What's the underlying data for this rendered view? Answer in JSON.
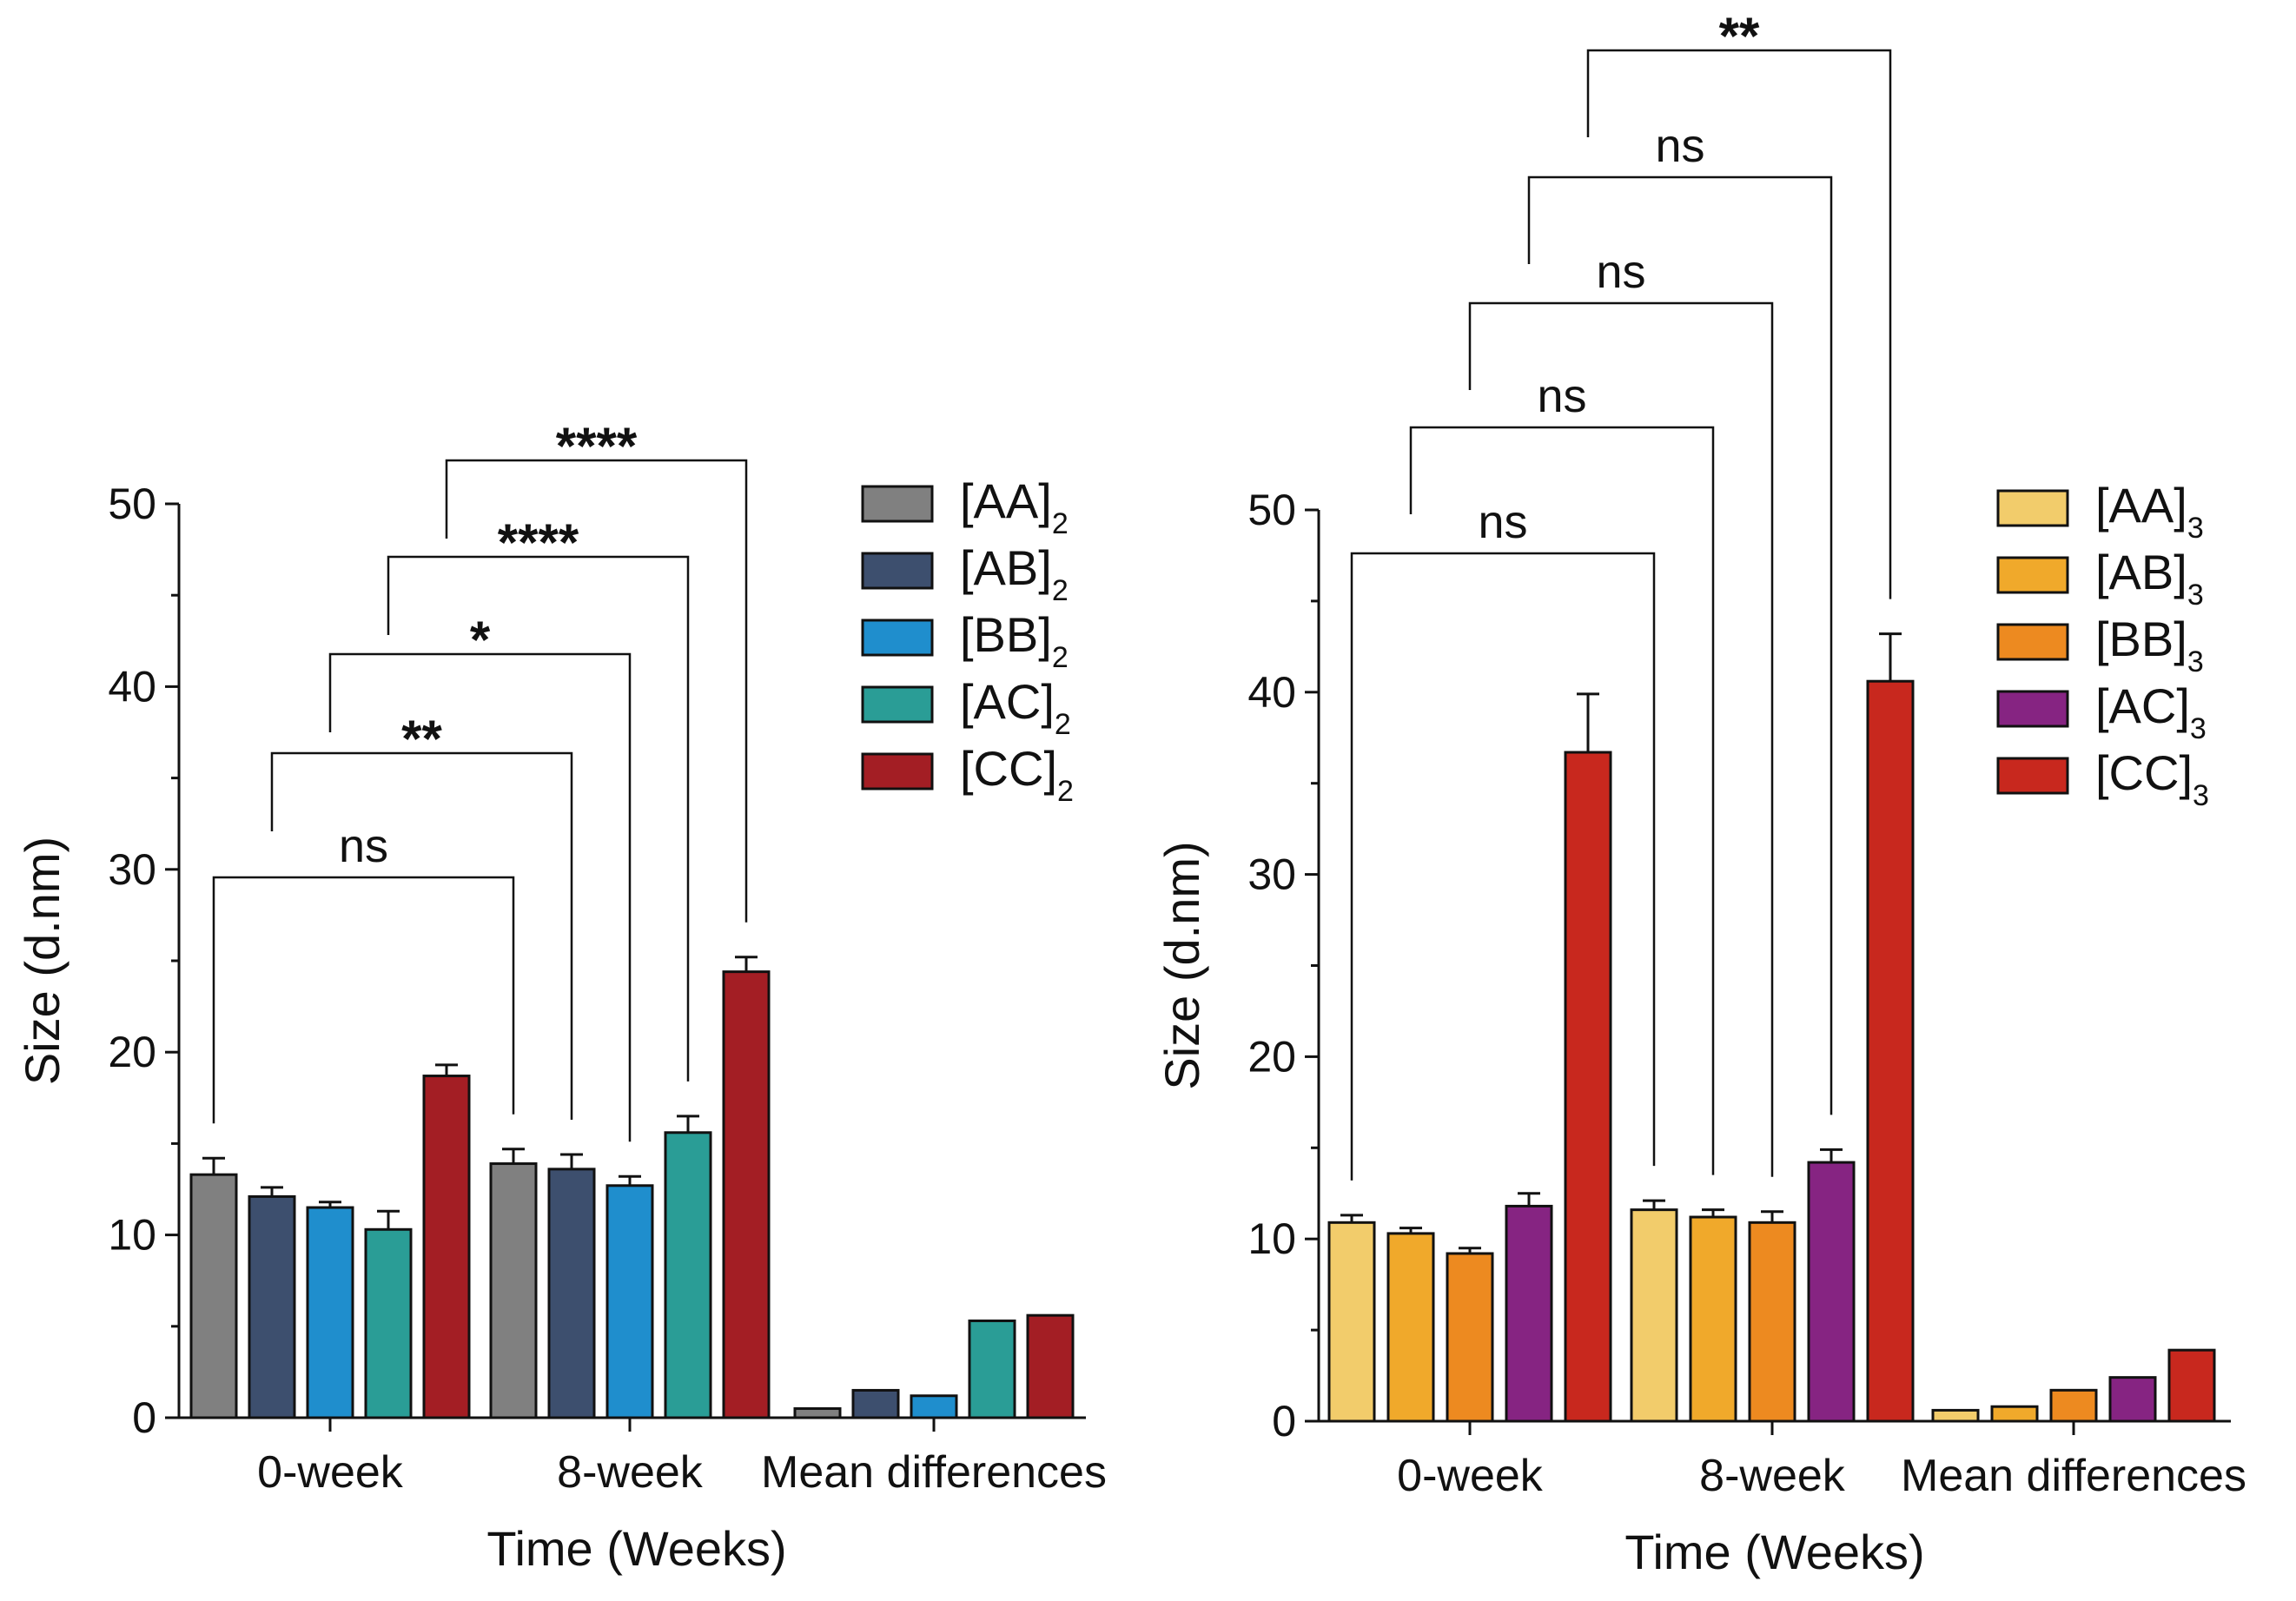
{
  "chart_data": [
    {
      "type": "bar",
      "id": "left",
      "title": "",
      "xlabel": "Time (Weeks)",
      "ylabel": "Size (d.nm)",
      "ylim": [
        0,
        50
      ],
      "yticks": [
        "0",
        "10",
        "20",
        "30",
        "40",
        "50"
      ],
      "groups": [
        "0-week",
        "8-week",
        "Mean differences"
      ],
      "legend_position": "top-right",
      "series": [
        {
          "name": "[AA]",
          "sub": "2",
          "color": "#808080",
          "values": [
            13.3,
            13.9,
            0.5
          ],
          "errors": [
            0.9,
            0.8,
            null
          ]
        },
        {
          "name": "[AB]",
          "sub": "2",
          "color": "#3d4f6e",
          "values": [
            12.1,
            13.6,
            1.5
          ],
          "errors": [
            0.5,
            0.8,
            null
          ]
        },
        {
          "name": "[BB]",
          "sub": "2",
          "color": "#1f8ecd",
          "values": [
            11.5,
            12.7,
            1.2
          ],
          "errors": [
            0.3,
            0.5,
            null
          ]
        },
        {
          "name": "[AC]",
          "sub": "2",
          "color": "#2a9d96",
          "values": [
            10.3,
            15.6,
            5.3
          ],
          "errors": [
            1.0,
            0.9,
            null
          ]
        },
        {
          "name": "[CC]",
          "sub": "2",
          "color": "#a31e24",
          "values": [
            18.7,
            24.4,
            5.6
          ],
          "errors": [
            0.6,
            0.8,
            null
          ]
        }
      ],
      "significance": [
        {
          "series": 0,
          "label": "ns"
        },
        {
          "series": 1,
          "label": "**"
        },
        {
          "series": 2,
          "label": "*"
        },
        {
          "series": 3,
          "label": "****"
        },
        {
          "series": 4,
          "label": "****"
        }
      ]
    },
    {
      "type": "bar",
      "id": "right",
      "title": "",
      "xlabel": "Time (Weeks)",
      "ylabel": "Size (d.nm)",
      "ylim": [
        0,
        50
      ],
      "yticks": [
        "0",
        "10",
        "20",
        "30",
        "40",
        "50"
      ],
      "groups": [
        "0-week",
        "8-week",
        "Mean differences"
      ],
      "legend_position": "top-right",
      "series": [
        {
          "name": "[AA]",
          "sub": "3",
          "color": "#f2cc6b",
          "values": [
            10.9,
            11.6,
            0.6
          ],
          "errors": [
            0.4,
            0.5,
            null
          ]
        },
        {
          "name": "[AB]",
          "sub": "3",
          "color": "#f0a92b",
          "values": [
            10.3,
            11.2,
            0.8
          ],
          "errors": [
            0.3,
            0.4,
            null
          ]
        },
        {
          "name": "[BB]",
          "sub": "3",
          "color": "#ed8a20",
          "values": [
            9.2,
            10.9,
            1.7
          ],
          "errors": [
            0.3,
            0.6,
            null
          ]
        },
        {
          "name": "[AC]",
          "sub": "3",
          "color": "#862482",
          "values": [
            11.8,
            14.2,
            2.4
          ],
          "errors": [
            0.7,
            0.7,
            null
          ]
        },
        {
          "name": "[CC]",
          "sub": "3",
          "color": "#c8281e",
          "values": [
            36.7,
            40.6,
            3.9
          ],
          "errors": [
            3.2,
            2.6,
            null
          ]
        }
      ],
      "significance": [
        {
          "series": 0,
          "label": "ns"
        },
        {
          "series": 1,
          "label": "ns"
        },
        {
          "series": 2,
          "label": "ns"
        },
        {
          "series": 3,
          "label": "ns"
        },
        {
          "series": 4,
          "label": "**"
        }
      ]
    }
  ]
}
